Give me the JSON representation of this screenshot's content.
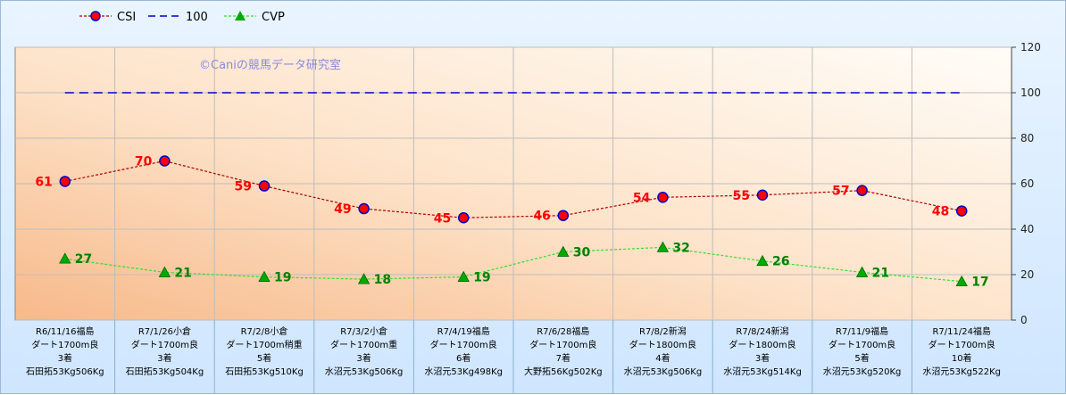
{
  "chart_data": {
    "type": "line",
    "watermark": "©Caniの競馬データ研究室",
    "ylim": [
      0,
      120
    ],
    "yticks": [
      0,
      20,
      40,
      60,
      80,
      100,
      120
    ],
    "grid": true,
    "legend_position": "top-left",
    "categories": [
      [
        "R6/11/16福島",
        "ダート1700m良",
        "3着",
        "石田拓53Kg506Kg"
      ],
      [
        "R7/1/26小倉",
        "ダート1700m良",
        "3着",
        "石田拓53Kg504Kg"
      ],
      [
        "R7/2/8小倉",
        "ダート1700m稍重",
        "5着",
        "石田拓53Kg510Kg"
      ],
      [
        "R7/3/2小倉",
        "ダート1700m重",
        "3着",
        "水沼元53Kg506Kg"
      ],
      [
        "R7/4/19福島",
        "ダート1700m良",
        "6着",
        "水沼元53Kg498Kg"
      ],
      [
        "R7/6/28福島",
        "ダート1700m良",
        "7着",
        "大野拓56Kg502Kg"
      ],
      [
        "R7/8/2新潟",
        "ダート1800m良",
        "4着",
        "水沼元53Kg506Kg"
      ],
      [
        "R7/8/24新潟",
        "ダート1800m良",
        "3着",
        "水沼元53Kg514Kg"
      ],
      [
        "R7/11/9福島",
        "ダート1700m良",
        "5着",
        "水沼元53Kg520Kg"
      ],
      [
        "R7/11/24福島",
        "ダート1700m良",
        "10着",
        "水沼元53Kg522Kg"
      ]
    ],
    "series": [
      {
        "name": "CSI",
        "values": [
          61,
          70,
          59,
          49,
          45,
          46,
          54,
          55,
          57,
          48
        ],
        "color": "#aa0000",
        "marker_color": "#ff0000",
        "marker_edge": "#0000cc"
      },
      {
        "name": "100",
        "values": [
          100,
          100,
          100,
          100,
          100,
          100,
          100,
          100,
          100,
          100
        ],
        "color": "#0000cc"
      },
      {
        "name": "CVP",
        "values": [
          27,
          21,
          19,
          18,
          19,
          30,
          32,
          26,
          21,
          17
        ],
        "color": "#33dd33",
        "marker_color": "#00aa00"
      }
    ]
  }
}
